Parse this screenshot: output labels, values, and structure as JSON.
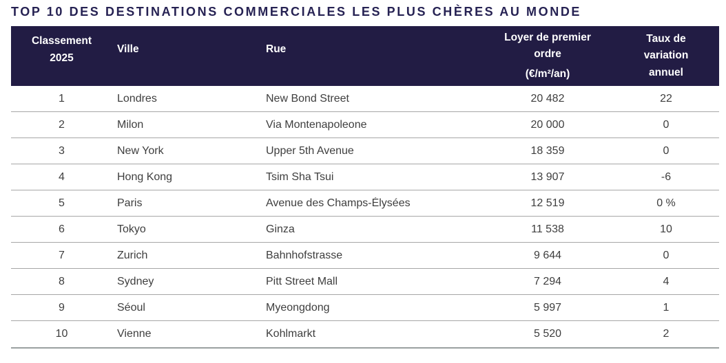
{
  "title": "TOP 10 DES DESTINATIONS COMMERCIALES LES PLUS CHÈRES AU MONDE",
  "colors": {
    "header_bg": "#221c44",
    "title_color": "#262253",
    "header_text": "#ffffff",
    "body_text": "#3e3e3e",
    "separator": "#a6a6a6",
    "bottom_border": "#9aa0a0",
    "page_bg": "#ffffff"
  },
  "chart_data": {
    "type": "table",
    "title": "TOP 10 DES DESTINATIONS COMMERCIALES LES PLUS CHÈRES AU MONDE",
    "columns": [
      {
        "id": "rank",
        "label": "Classement 2025"
      },
      {
        "id": "city",
        "label": "Ville"
      },
      {
        "id": "street",
        "label": "Rue"
      },
      {
        "id": "rent",
        "label": "Loyer de premier ordre",
        "sublabel": "(€/m²/an)"
      },
      {
        "id": "variation",
        "label": "Taux de variation annuel"
      }
    ],
    "rows": [
      {
        "rank": "1",
        "city": "Londres",
        "street": "New Bond Street",
        "rent": "20 482",
        "variation": "22"
      },
      {
        "rank": "2",
        "city": "Milon",
        "street": "Via Montenapoleone",
        "rent": "20 000",
        "variation": "0"
      },
      {
        "rank": "3",
        "city": "New York",
        "street": "Upper 5th Avenue",
        "rent": "18 359",
        "variation": "0"
      },
      {
        "rank": "4",
        "city": "Hong Kong",
        "street": "Tsim Sha Tsui",
        "rent": "13 907",
        "variation": "-6"
      },
      {
        "rank": "5",
        "city": "Paris",
        "street": "Avenue des Champs-Élysées",
        "rent": "12 519",
        "variation": "0 %"
      },
      {
        "rank": "6",
        "city": "Tokyo",
        "street": "Ginza",
        "rent": "11 538",
        "variation": "10"
      },
      {
        "rank": "7",
        "city": "Zurich",
        "street": "Bahnhofstrasse",
        "rent": "9 644",
        "variation": "0"
      },
      {
        "rank": "8",
        "city": "Sydney",
        "street": "Pitt Street Mall",
        "rent": "7 294",
        "variation": "4"
      },
      {
        "rank": "9",
        "city": "Séoul",
        "street": "Myeongdong",
        "rent": "5 997",
        "variation": "1"
      },
      {
        "rank": "10",
        "city": "Vienne",
        "street": "Kohlmarkt",
        "rent": "5 520",
        "variation": "2"
      }
    ]
  }
}
